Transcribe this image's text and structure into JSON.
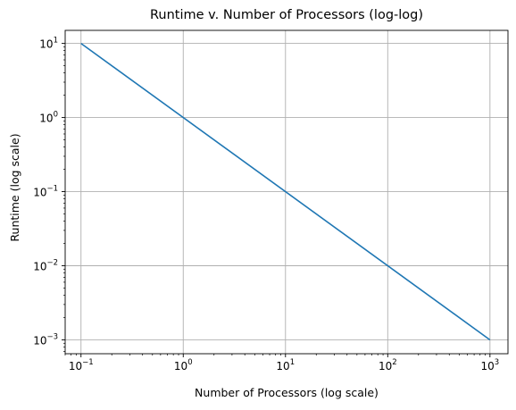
{
  "chart_data": {
    "type": "line",
    "title": "Runtime v. Number of Processors (log-log)",
    "xlabel": "Number of Processors (log scale)",
    "ylabel": "Runtime (log scale)",
    "xscale": "log",
    "yscale": "log",
    "xlim": [
      0.07,
      1500
    ],
    "ylim": [
      0.00065,
      15
    ],
    "grid": true,
    "x_ticks": [
      {
        "value": 0.1,
        "base": "10",
        "exp": "−1"
      },
      {
        "value": 1,
        "base": "10",
        "exp": "0"
      },
      {
        "value": 10,
        "base": "10",
        "exp": "1"
      },
      {
        "value": 100,
        "base": "10",
        "exp": "2"
      },
      {
        "value": 1000,
        "base": "10",
        "exp": "3"
      }
    ],
    "y_ticks": [
      {
        "value": 0.001,
        "base": "10",
        "exp": "−3"
      },
      {
        "value": 0.01,
        "base": "10",
        "exp": "−2"
      },
      {
        "value": 0.1,
        "base": "10",
        "exp": "−1"
      },
      {
        "value": 1,
        "base": "10",
        "exp": "0"
      },
      {
        "value": 10,
        "base": "10",
        "exp": "1"
      }
    ],
    "series": [
      {
        "color": "#1f77b4",
        "x": [
          0.1,
          1000
        ],
        "y": [
          10,
          0.001
        ]
      }
    ]
  }
}
